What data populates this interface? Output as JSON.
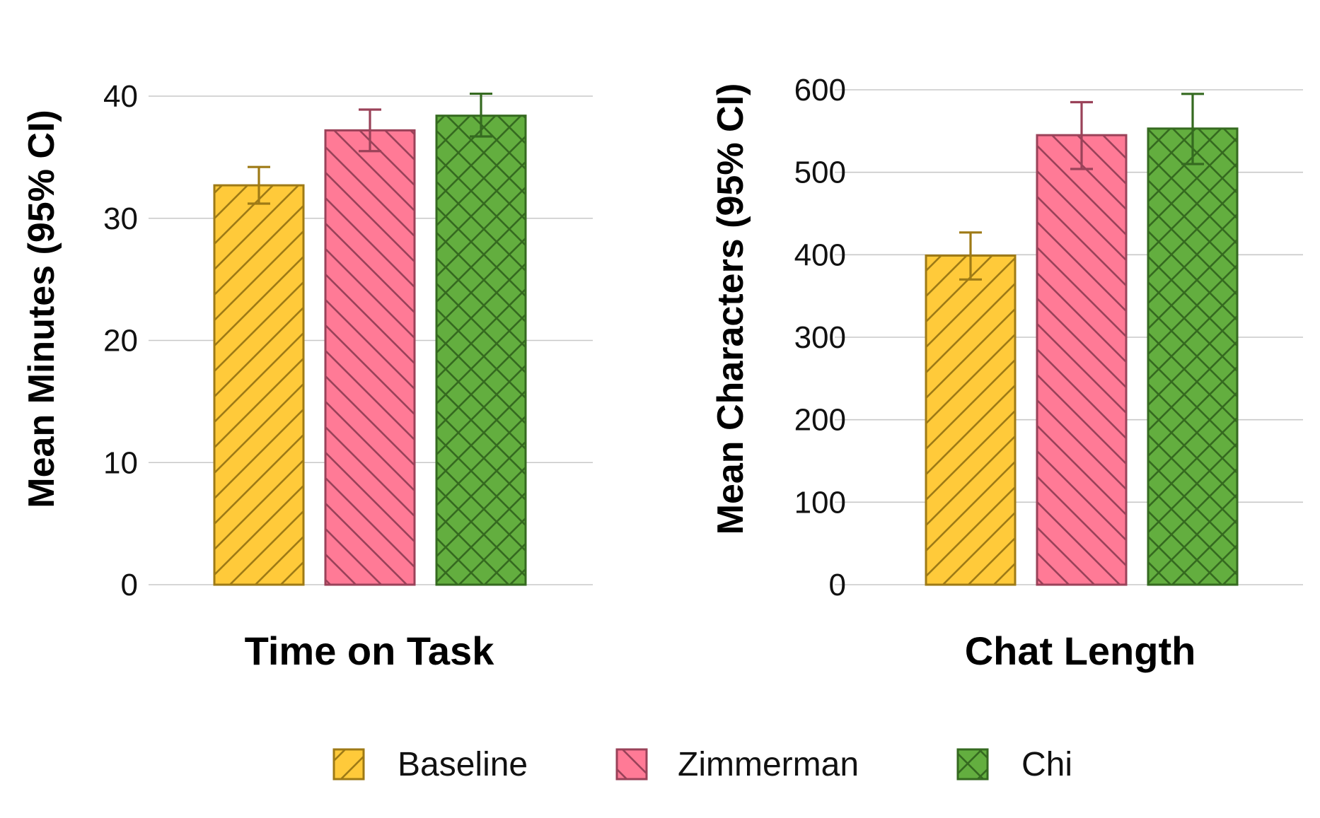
{
  "colors": {
    "Baseline": {
      "fill": "#FFCA3A",
      "stroke": "#9E7A16"
    },
    "Zimmerman": {
      "fill": "#FF7A96",
      "stroke": "#9A4259"
    },
    "Chi": {
      "fill": "#63AE3F",
      "stroke": "#356A20"
    },
    "grid": "#C8C8C8"
  },
  "hatches": {
    "Baseline": "diagonal-up",
    "Zimmerman": "diagonal-down",
    "Chi": "crosshatch"
  },
  "legend": {
    "position": "bottom",
    "items": [
      {
        "label": "Baseline"
      },
      {
        "label": "Zimmerman"
      },
      {
        "label": "Chi"
      }
    ]
  },
  "chart_data": [
    {
      "type": "bar",
      "xlabel": "Time on Task",
      "ylabel": "Mean Minutes (95% CI)",
      "ylim": [
        0,
        42
      ],
      "yticks": [
        "0",
        "10",
        "20",
        "30",
        "40"
      ],
      "grid": true,
      "series": [
        {
          "name": "Baseline",
          "value": 32.7,
          "ci": [
            31.2,
            34.2
          ]
        },
        {
          "name": "Zimmerman",
          "value": 37.2,
          "ci": [
            35.5,
            38.9
          ]
        },
        {
          "name": "Chi",
          "value": 38.4,
          "ci": [
            36.7,
            40.2
          ]
        }
      ]
    },
    {
      "type": "bar",
      "xlabel": "Chat Length",
      "ylabel": "Mean Characters (95% CI)",
      "ylim": [
        0,
        630
      ],
      "yticks": [
        "0",
        "100",
        "200",
        "300",
        "400",
        "500",
        "600"
      ],
      "grid": true,
      "series": [
        {
          "name": "Baseline",
          "value": 399,
          "ci": [
            370,
            427
          ]
        },
        {
          "name": "Zimmerman",
          "value": 545,
          "ci": [
            504,
            585
          ]
        },
        {
          "name": "Chi",
          "value": 553,
          "ci": [
            510,
            595
          ]
        }
      ]
    }
  ]
}
